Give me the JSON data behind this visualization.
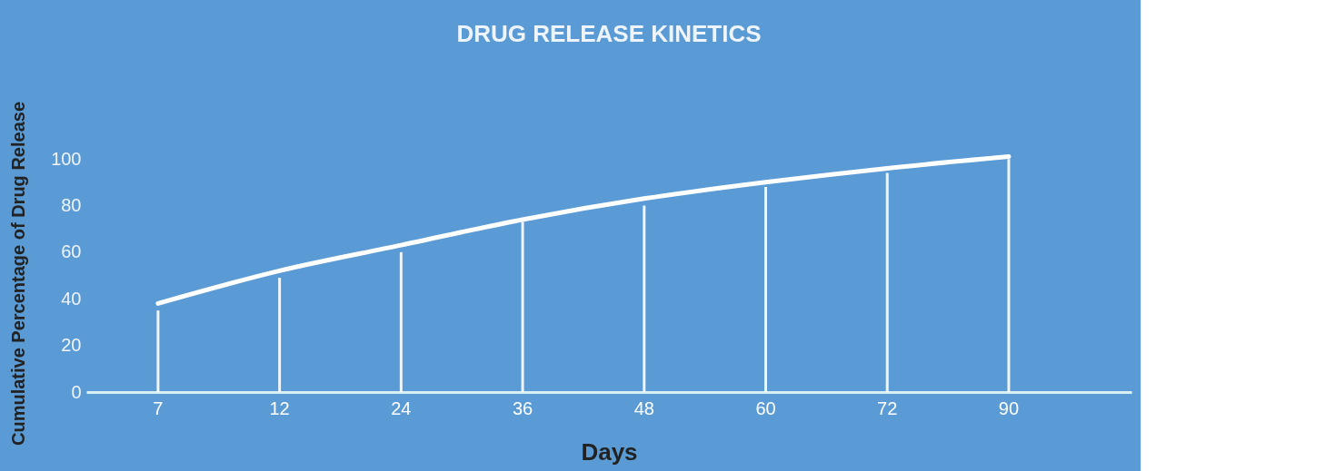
{
  "chart_data": {
    "type": "bar",
    "title": "DRUG RELEASE KINETICS",
    "xlabel": "Days",
    "ylabel": "Cumulative Percentage of Drug Release",
    "categories": [
      "7",
      "12",
      "24",
      "36",
      "48",
      "60",
      "72",
      "90"
    ],
    "series": [
      {
        "color": "#ffffff",
        "values": [
          35,
          49,
          60,
          73,
          80,
          88,
          94,
          100
        ]
      },
      {
        "type": "line",
        "color": "#ffffff",
        "values": [
          38,
          52,
          63,
          74,
          83,
          90,
          96,
          101
        ]
      }
    ],
    "ylim": [
      0,
      102
    ],
    "yticks": [
      0,
      20,
      40,
      60,
      80,
      100
    ]
  }
}
